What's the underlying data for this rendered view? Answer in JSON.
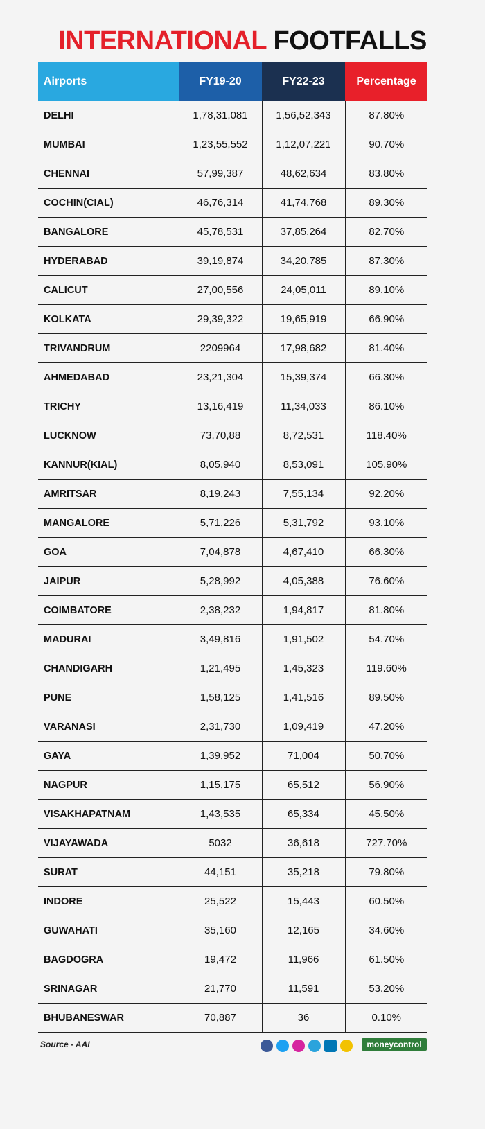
{
  "header": {
    "title_red": "INTERNATIONAL",
    "title_black": "FOOTFALLS"
  },
  "table": {
    "columns": [
      "Airports",
      "FY19-20",
      "FY22-23",
      "Percentage"
    ],
    "rows": [
      [
        "DELHI",
        "1,78,31,081",
        "1,56,52,343",
        "87.80%"
      ],
      [
        "MUMBAI",
        "1,23,55,552",
        "1,12,07,221",
        "90.70%"
      ],
      [
        "CHENNAI",
        "57,99,387",
        "48,62,634",
        "83.80%"
      ],
      [
        "COCHIN(CIAL)",
        "46,76,314",
        "41,74,768",
        "89.30%"
      ],
      [
        "BANGALORE",
        "45,78,531",
        "37,85,264",
        "82.70%"
      ],
      [
        "HYDERABAD",
        "39,19,874",
        "34,20,785",
        "87.30%"
      ],
      [
        "CALICUT",
        "27,00,556",
        "24,05,011",
        "89.10%"
      ],
      [
        "KOLKATA",
        "29,39,322",
        "19,65,919",
        "66.90%"
      ],
      [
        "TRIVANDRUM",
        "2209964",
        "17,98,682",
        "81.40%"
      ],
      [
        "AHMEDABAD",
        "23,21,304",
        "15,39,374",
        "66.30%"
      ],
      [
        "TRICHY",
        "13,16,419",
        "11,34,033",
        "86.10%"
      ],
      [
        "LUCKNOW",
        "73,70,88",
        "8,72,531",
        "118.40%"
      ],
      [
        "KANNUR(KIAL)",
        "8,05,940",
        "8,53,091",
        "105.90%"
      ],
      [
        "AMRITSAR",
        "8,19,243",
        "7,55,134",
        "92.20%"
      ],
      [
        "MANGALORE",
        "5,71,226",
        "5,31,792",
        "93.10%"
      ],
      [
        "GOA",
        "7,04,878",
        "4,67,410",
        "66.30%"
      ],
      [
        "JAIPUR",
        "5,28,992",
        "4,05,388",
        "76.60%"
      ],
      [
        "COIMBATORE",
        "2,38,232",
        "1,94,817",
        "81.80%"
      ],
      [
        "MADURAI",
        "3,49,816",
        "1,91,502",
        "54.70%"
      ],
      [
        "CHANDIGARH",
        "1,21,495",
        "1,45,323",
        "119.60%"
      ],
      [
        "PUNE",
        "1,58,125",
        "1,41,516",
        "89.50%"
      ],
      [
        "VARANASI",
        "2,31,730",
        "1,09,419",
        "47.20%"
      ],
      [
        "GAYA",
        "1,39,952",
        "71,004",
        "50.70%"
      ],
      [
        "NAGPUR",
        "1,15,175",
        "65,512",
        "56.90%"
      ],
      [
        "VISAKHAPATNAM",
        "1,43,535",
        "65,334",
        "45.50%"
      ],
      [
        "VIJAYAWADA",
        "5032",
        "36,618",
        "727.70%"
      ],
      [
        "SURAT",
        "44,151",
        "35,218",
        "79.80%"
      ],
      [
        "INDORE",
        "25,522",
        "15,443",
        "60.50%"
      ],
      [
        "GUWAHATI",
        "35,160",
        "12,165",
        "34.60%"
      ],
      [
        "BAGDOGRA",
        "19,472",
        "11,966",
        "61.50%"
      ],
      [
        "SRINAGAR",
        "21,770",
        "11,591",
        "53.20%"
      ],
      [
        "BHUBANESWAR",
        "70,887",
        "36",
        "0.10%"
      ]
    ]
  },
  "footer": {
    "source": "Source - AAI",
    "brand": "moneycontrol"
  }
}
